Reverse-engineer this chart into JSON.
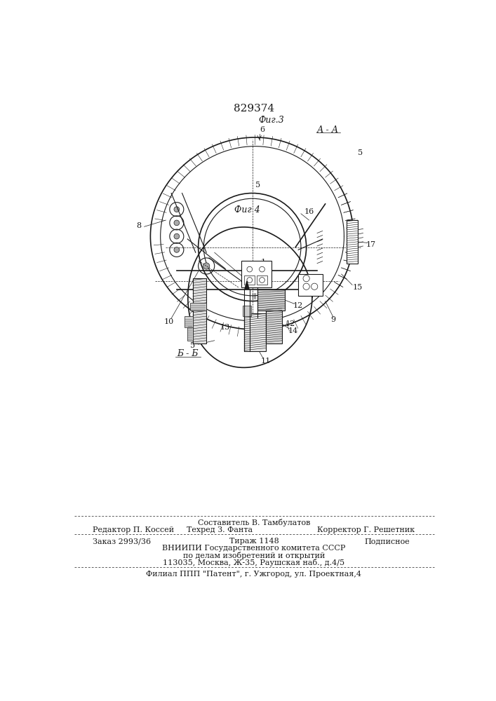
{
  "patent_number": "829374",
  "section_label_top": "А - А",
  "fig3_label": "Фиг.3",
  "fig4_label": "Фиг 4",
  "section_label_bb": "Б - Б",
  "footer": {
    "line1_center": "Составитель В. Тамбулатов",
    "line2_left": "Редактор П. Коссей",
    "line2_center": "Техред З. Фанта",
    "line2_right": "Корректор Г. Решетник",
    "line3_left": "Заказ 2993/36",
    "line3_center": "Тираж 1148",
    "line3_right": "Подписное",
    "line4": "ВНИИПИ Государственного комитета СССР",
    "line5": "по делам изобретений и открытий",
    "line6": "113035, Москва, Ж-35, Раушская наб., д.4/5",
    "line7": "Филиал ППП \"Патент\", г. Ужгород, ул. Проектная,4"
  },
  "bg_color": "#ffffff",
  "drawing_color": "#1a1a1a"
}
